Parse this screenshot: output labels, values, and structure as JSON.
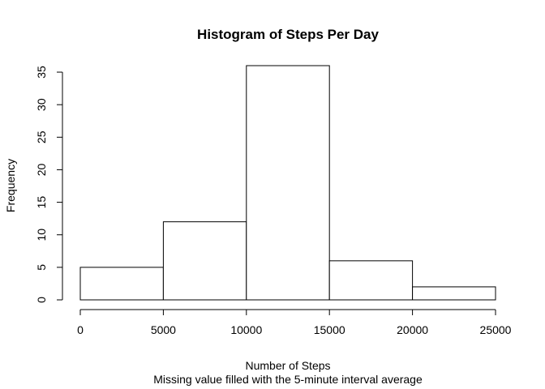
{
  "chart_data": {
    "type": "bar",
    "subtype": "histogram",
    "title": "Histogram of Steps Per Day",
    "xlabel": "Number of Steps",
    "subtitle": "Missing value filled with the 5-minute interval average",
    "ylabel": "Frequency",
    "bins": [
      {
        "start": 0,
        "end": 5000,
        "count": 5
      },
      {
        "start": 5000,
        "end": 10000,
        "count": 12
      },
      {
        "start": 10000,
        "end": 15000,
        "count": 36
      },
      {
        "start": 15000,
        "end": 20000,
        "count": 6
      },
      {
        "start": 20000,
        "end": 25000,
        "count": 2
      }
    ],
    "xlim": [
      0,
      25000
    ],
    "ylim": [
      0,
      36
    ],
    "xticks": [
      "0",
      "5000",
      "10000",
      "15000",
      "20000",
      "25000"
    ],
    "yticks": [
      "0",
      "5",
      "10",
      "15",
      "20",
      "25",
      "30",
      "35"
    ],
    "grid": false,
    "legend": "none",
    "bar_fill": "#ffffff",
    "bar_stroke": "#000000"
  }
}
